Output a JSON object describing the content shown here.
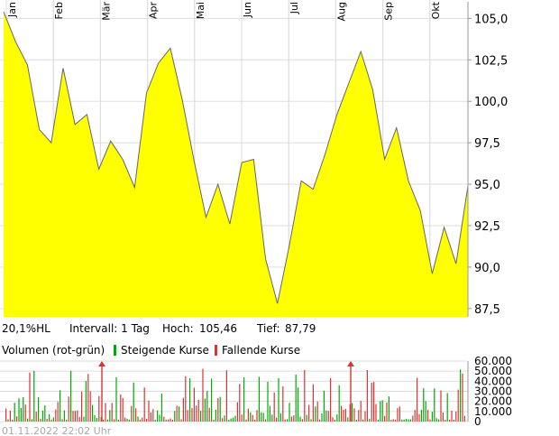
{
  "chart_data": [
    {
      "type": "area",
      "x": [
        "Jan",
        "Jan",
        "Jan",
        "Jan",
        "Feb",
        "Feb",
        "Feb",
        "Feb",
        "Mär",
        "Mär",
        "Mär",
        "Mär",
        "Apr",
        "Apr",
        "Apr",
        "Apr",
        "Mai",
        "Mai",
        "Mai",
        "Mai",
        "Jun",
        "Jun",
        "Jun",
        "Jun",
        "Jul",
        "Jul",
        "Jul",
        "Jul",
        "Aug",
        "Aug",
        "Aug",
        "Aug",
        "Sep",
        "Sep",
        "Sep",
        "Sep",
        "Okt",
        "Okt",
        "Okt",
        "Okt"
      ],
      "months": [
        "Jan",
        "Feb",
        "Mär",
        "Apr",
        "Mai",
        "Jun",
        "Jul",
        "Aug",
        "Sep",
        "Okt"
      ],
      "series": [
        {
          "values": [
            105.4,
            103.6,
            102.2,
            98.3,
            97.5,
            102.0,
            98.6,
            99.2,
            95.9,
            97.6,
            96.5,
            94.8,
            100.5,
            102.3,
            103.2,
            100.1,
            96.4,
            93.0,
            95.0,
            92.6,
            96.3,
            96.5,
            90.5,
            87.8,
            91.3,
            95.2,
            94.7,
            96.8,
            99.2,
            101.1,
            103.0,
            100.7,
            96.5,
            98.4,
            95.2,
            93.4,
            89.6,
            92.4,
            90.2,
            94.9
          ]
        }
      ],
      "ylim": [
        87.0,
        106.0
      ],
      "yticks": [
        "105,0",
        "102,5",
        "100,0",
        "97,5",
        "95,0",
        "92,5",
        "90,0",
        "87,5"
      ],
      "grid": true,
      "fill_color": "#ffff00",
      "line_color": "#666666"
    },
    {
      "type": "bar",
      "title": "Volumen (rot-grün)",
      "legend": [
        {
          "name": "Steigende Kurse",
          "color": "#00aa00"
        },
        {
          "name": "Fallende Kurse",
          "color": "#dd3333"
        }
      ],
      "ylim": [
        0,
        60000
      ],
      "yticks": [
        "60.000",
        "50.000",
        "40.000",
        "30.000",
        "20.000",
        "10.000",
        "0"
      ]
    }
  ],
  "info": {
    "range": "20,1%HL",
    "interval_label": "Intervall: 1 Tag",
    "high_label": "Hoch:",
    "high_value": "105,46",
    "low_label": "Tief:",
    "low_value": "87,79"
  },
  "footer": {
    "timestamp": "01.11.2022 22:02 Uhr"
  }
}
